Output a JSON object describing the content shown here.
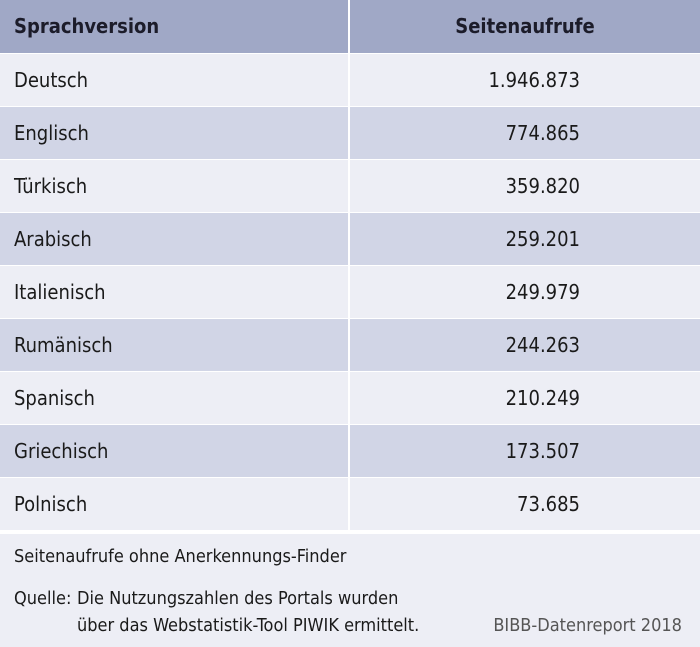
{
  "table": {
    "headers": {
      "language": "Sprachversion",
      "views": "Seitenaufrufe"
    },
    "rows": [
      {
        "language": "Deutsch",
        "views": "1.946.873"
      },
      {
        "language": "Englisch",
        "views": "774.865"
      },
      {
        "language": "Türkisch",
        "views": "359.820"
      },
      {
        "language": "Arabisch",
        "views": "259.201"
      },
      {
        "language": "Italienisch",
        "views": "249.979"
      },
      {
        "language": "Rumänisch",
        "views": "244.263"
      },
      {
        "language": "Spanisch",
        "views": "210.249"
      },
      {
        "language": "Griechisch",
        "views": "173.507"
      },
      {
        "language": "Polnisch",
        "views": "73.685"
      }
    ]
  },
  "notes": {
    "footnote": "Seitenaufrufe ohne Anerkennungs-Finder",
    "source_label": "Quelle:",
    "source_line1": "Die Nutzungszahlen des Portals wurden",
    "source_line2": "über das Webstatistik-Tool PIWIK ermittelt.",
    "report": "BIBB-Datenreport 2018"
  },
  "colors": {
    "header_bg": "#a0a8c6",
    "row_light": "#edeef5",
    "row_dark": "#d1d5e6"
  }
}
